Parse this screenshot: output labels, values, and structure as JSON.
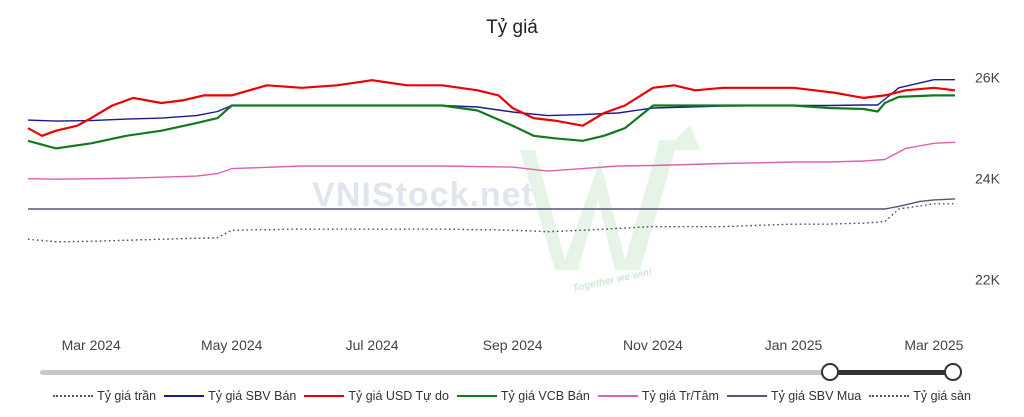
{
  "chart_data": {
    "type": "line",
    "title": "Tỷ giá",
    "x_tick_labels": [
      "Mar 2024",
      "May 2024",
      "Jul 2024",
      "Sep 2024",
      "Nov 2024",
      "Jan 2025",
      "Mar 2025"
    ],
    "x_tick_months": [
      0,
      2,
      4,
      6,
      8,
      10,
      12
    ],
    "x_range_months": [
      -0.9,
      12.3
    ],
    "y_tick_labels": [
      "22K",
      "24K",
      "26K"
    ],
    "y_tick_values": [
      22000,
      24000,
      26000
    ],
    "ylim": [
      21200,
      26450
    ],
    "x_unit": "months since Mar 2024",
    "watermark": {
      "text": "VNIStock.net",
      "slogan": "Together we win!"
    },
    "legend_position": "bottom",
    "series": [
      {
        "name": "Tỷ giá trần",
        "color": "#555555",
        "style": "dotted",
        "x": [
          -0.9,
          -0.5,
          0,
          1,
          1.8,
          2,
          3,
          4,
          5,
          6,
          6.5,
          7,
          8,
          9,
          10,
          10.5,
          11,
          11.3,
          11.5,
          12,
          12.3
        ],
        "y": [
          22800,
          22750,
          22760,
          22800,
          22830,
          22980,
          23000,
          23000,
          23000,
          22980,
          22950,
          22980,
          23050,
          23050,
          23100,
          23100,
          23120,
          23150,
          23400,
          23500,
          23500
        ]
      },
      {
        "name": "Tỷ giá SBV Bán",
        "color": "#1a1a8c",
        "style": "solid",
        "x": [
          -0.9,
          -0.5,
          0,
          0.5,
          1,
          1.5,
          1.8,
          2,
          3,
          4,
          5,
          5.5,
          6,
          6.5,
          7,
          7.5,
          8,
          9,
          10,
          10.5,
          11,
          11.2,
          11.5,
          12,
          12.3
        ],
        "y": [
          25160,
          25140,
          25150,
          25180,
          25200,
          25250,
          25330,
          25450,
          25450,
          25450,
          25450,
          25420,
          25320,
          25250,
          25270,
          25300,
          25400,
          25440,
          25450,
          25450,
          25460,
          25460,
          25800,
          25960,
          25960
        ]
      },
      {
        "name": "Tỷ giá USD Tự do",
        "color": "#ee0000",
        "style": "solid",
        "x": [
          -0.9,
          -0.7,
          -0.5,
          -0.2,
          0,
          0.3,
          0.6,
          1,
          1.3,
          1.6,
          2,
          2.5,
          3,
          3.5,
          4,
          4.5,
          5,
          5.5,
          5.8,
          6,
          6.3,
          6.6,
          7,
          7.3,
          7.6,
          8,
          8.3,
          8.6,
          9,
          9.5,
          10,
          10.3,
          10.6,
          11,
          11.3,
          11.6,
          12,
          12.3
        ],
        "y": [
          25000,
          24850,
          24950,
          25050,
          25200,
          25450,
          25600,
          25500,
          25550,
          25650,
          25650,
          25850,
          25800,
          25850,
          25950,
          25850,
          25850,
          25750,
          25650,
          25400,
          25200,
          25150,
          25050,
          25300,
          25450,
          25800,
          25850,
          25750,
          25800,
          25800,
          25800,
          25750,
          25700,
          25600,
          25650,
          25750,
          25800,
          25750
        ]
      },
      {
        "name": "Tỷ giá VCB Bán",
        "color": "#127a1e",
        "style": "solid",
        "x": [
          -0.9,
          -0.5,
          0,
          0.5,
          1,
          1.5,
          1.8,
          2,
          3,
          4,
          5,
          5.5,
          6,
          6.3,
          6.6,
          7,
          7.3,
          7.6,
          8,
          9,
          10,
          10.5,
          11,
          11.2,
          11.3,
          11.5,
          12,
          12.3
        ],
        "y": [
          24750,
          24600,
          24700,
          24850,
          24950,
          25100,
          25200,
          25450,
          25450,
          25450,
          25450,
          25350,
          25050,
          24850,
          24800,
          24750,
          24850,
          25000,
          25450,
          25450,
          25450,
          25400,
          25380,
          25330,
          25500,
          25620,
          25650,
          25650
        ]
      },
      {
        "name": "Tỷ giá Tr/Tâm",
        "color": "#e060b0",
        "style": "solid",
        "x": [
          -0.9,
          -0.5,
          0,
          0.5,
          1,
          1.5,
          1.8,
          2,
          3,
          4,
          5,
          6,
          6.5,
          7,
          7.5,
          8,
          9,
          10,
          10.5,
          11,
          11.3,
          11.6,
          12,
          12.3
        ],
        "y": [
          24000,
          23990,
          24000,
          24010,
          24030,
          24050,
          24100,
          24200,
          24250,
          24250,
          24250,
          24230,
          24150,
          24200,
          24250,
          24260,
          24300,
          24330,
          24330,
          24350,
          24380,
          24600,
          24700,
          24720
        ]
      },
      {
        "name": "Tỷ giá SBV Mua",
        "color": "#555577",
        "style": "solid",
        "x": [
          -0.9,
          0,
          2,
          4,
          6,
          8,
          10,
          11.3,
          11.5,
          11.8,
          12,
          12.3
        ],
        "y": [
          23400,
          23400,
          23400,
          23400,
          23400,
          23400,
          23400,
          23400,
          23450,
          23550,
          23580,
          23600
        ]
      },
      {
        "name": "Tỷ giá sàn",
        "color": "#555555",
        "style": "dotted",
        "x": [
          -0.9,
          -0.5,
          0,
          1,
          1.8,
          2,
          3,
          4,
          5,
          6,
          6.5,
          7,
          8,
          9,
          10,
          10.5,
          11,
          11.3,
          11.5,
          12,
          12.3
        ],
        "y": [
          22800,
          22750,
          22760,
          22800,
          22830,
          22980,
          23000,
          23000,
          23000,
          22980,
          22950,
          22980,
          23050,
          23050,
          23100,
          23100,
          23120,
          23150,
          23400,
          23500,
          23500
        ]
      }
    ]
  },
  "range_slider": {
    "start": 0.89,
    "end": 1.0
  }
}
